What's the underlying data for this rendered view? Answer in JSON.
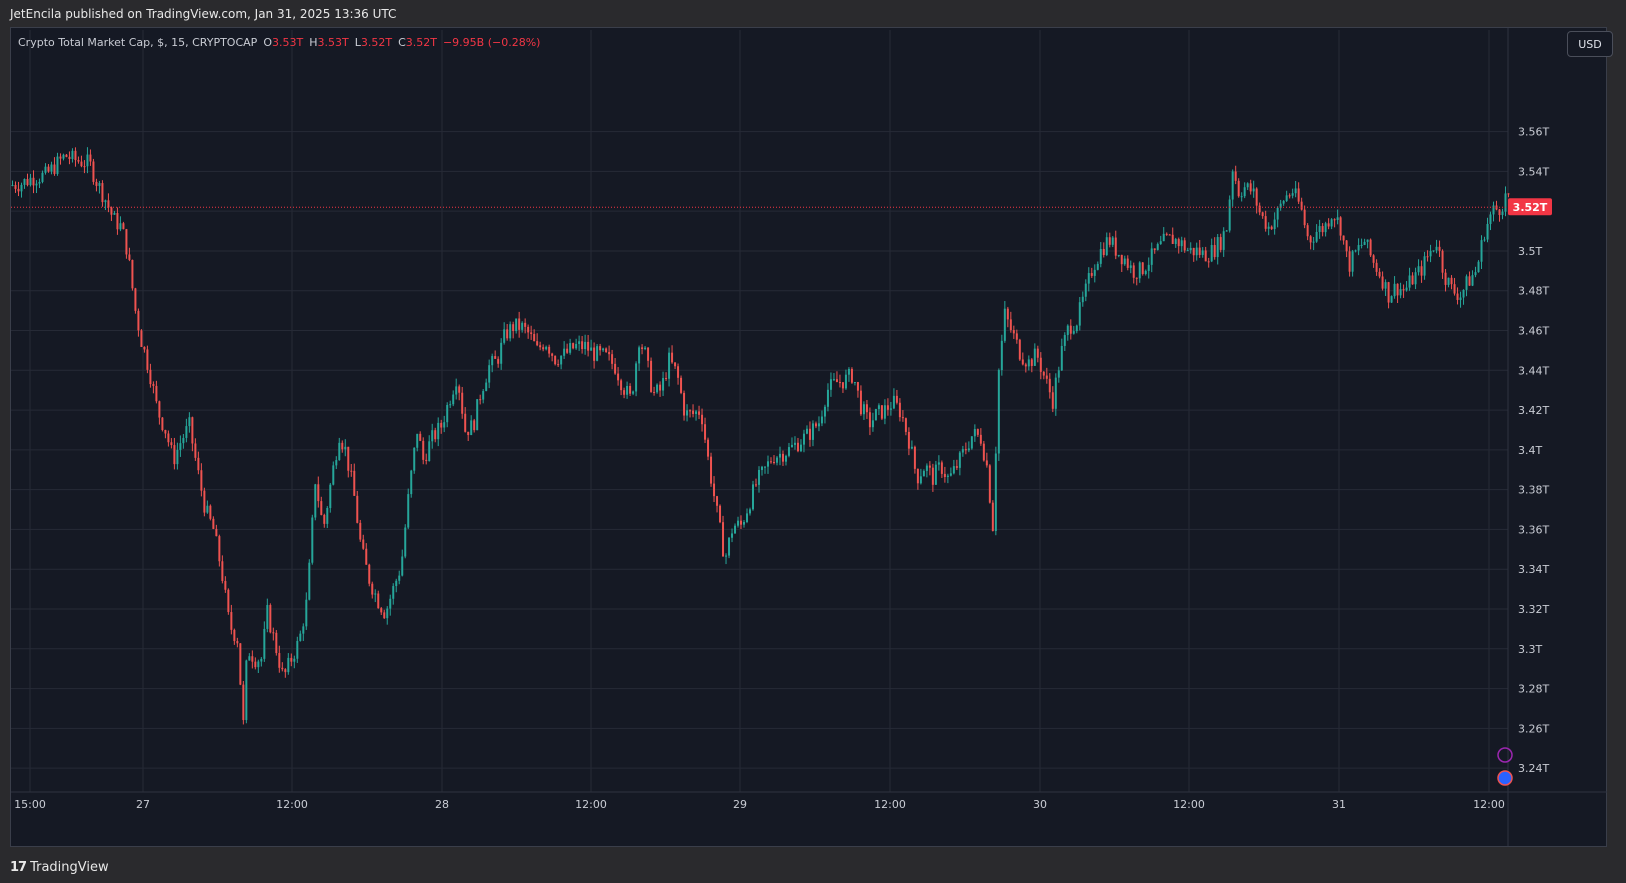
{
  "header": {
    "published_by": "JetEncila published on TradingView.com, Jan 31, 2025 13:36 UTC"
  },
  "legend": {
    "symbol": "Crypto Total Market Cap, $, 15, CRYPTOCAP",
    "open_label": "O",
    "open_value": "3.53T",
    "high_label": "H",
    "high_value": "3.53T",
    "low_label": "L",
    "low_value": "3.52T",
    "close_label": "C",
    "close_value": "3.52T",
    "change": "−9.95B (−0.28%)"
  },
  "currency_button": "USD",
  "current_price_label": "3.52T",
  "footer": {
    "logo": "17",
    "brand": "TradingView"
  },
  "colors": {
    "up": "#26a69a",
    "down": "#ef5350",
    "background": "#151924",
    "grid": "#262a36",
    "price_line": "#f23645"
  },
  "chart_data": {
    "type": "candlestick",
    "title": "",
    "xlabel": "",
    "ylabel": "",
    "ylim": [
      3.228,
      3.596
    ],
    "y_ticks": [
      "3.24T",
      "3.26T",
      "3.28T",
      "3.3T",
      "3.32T",
      "3.34T",
      "3.36T",
      "3.38T",
      "3.4T",
      "3.42T",
      "3.44T",
      "3.46T",
      "3.48T",
      "3.5T",
      "3.52T",
      "3.54T",
      "3.56T"
    ],
    "x_ticks": [
      "15:00",
      "27",
      "12:00",
      "28",
      "12:00",
      "29",
      "12:00",
      "30",
      "12:00",
      "31",
      "12:00"
    ],
    "current_price": 3.522,
    "path": [
      [
        0,
        3.533
      ],
      [
        12,
        3.534
      ],
      [
        24,
        3.537
      ],
      [
        36,
        3.538
      ],
      [
        48,
        3.544
      ],
      [
        56,
        3.548
      ],
      [
        64,
        3.546
      ],
      [
        72,
        3.545
      ],
      [
        80,
        3.544
      ],
      [
        88,
        3.534
      ],
      [
        96,
        3.526
      ],
      [
        104,
        3.516
      ],
      [
        112,
        3.512
      ],
      [
        118,
        3.5
      ],
      [
        126,
        3.47
      ],
      [
        132,
        3.455
      ],
      [
        140,
        3.44
      ],
      [
        148,
        3.42
      ],
      [
        156,
        3.41
      ],
      [
        164,
        3.395
      ],
      [
        172,
        3.405
      ],
      [
        180,
        3.412
      ],
      [
        188,
        3.39
      ],
      [
        196,
        3.37
      ],
      [
        204,
        3.36
      ],
      [
        212,
        3.34
      ],
      [
        220,
        3.312
      ],
      [
        228,
        3.305
      ],
      [
        234,
        3.262
      ],
      [
        238,
        3.3
      ],
      [
        246,
        3.295
      ],
      [
        252,
        3.295
      ],
      [
        258,
        3.318
      ],
      [
        266,
        3.302
      ],
      [
        274,
        3.285
      ],
      [
        282,
        3.295
      ],
      [
        290,
        3.304
      ],
      [
        298,
        3.325
      ],
      [
        306,
        3.385
      ],
      [
        314,
        3.36
      ],
      [
        322,
        3.385
      ],
      [
        330,
        3.408
      ],
      [
        336,
        3.4
      ],
      [
        344,
        3.38
      ],
      [
        352,
        3.35
      ],
      [
        360,
        3.335
      ],
      [
        368,
        3.325
      ],
      [
        376,
        3.318
      ],
      [
        384,
        3.33
      ],
      [
        392,
        3.342
      ],
      [
        400,
        3.38
      ],
      [
        408,
        3.41
      ],
      [
        414,
        3.395
      ],
      [
        422,
        3.405
      ],
      [
        432,
        3.412
      ],
      [
        440,
        3.425
      ],
      [
        448,
        3.438
      ],
      [
        456,
        3.41
      ],
      [
        464,
        3.412
      ],
      [
        472,
        3.43
      ],
      [
        480,
        3.442
      ],
      [
        488,
        3.445
      ],
      [
        496,
        3.458
      ],
      [
        504,
        3.462
      ],
      [
        512,
        3.462
      ],
      [
        520,
        3.458
      ],
      [
        528,
        3.45
      ],
      [
        536,
        3.455
      ],
      [
        546,
        3.446
      ],
      [
        556,
        3.448
      ],
      [
        566,
        3.452
      ],
      [
        576,
        3.452
      ],
      [
        586,
        3.448
      ],
      [
        596,
        3.447
      ],
      [
        606,
        3.442
      ],
      [
        614,
        3.432
      ],
      [
        622,
        3.425
      ],
      [
        630,
        3.456
      ],
      [
        636,
        3.448
      ],
      [
        644,
        3.428
      ],
      [
        652,
        3.43
      ],
      [
        660,
        3.445
      ],
      [
        668,
        3.438
      ],
      [
        676,
        3.418
      ],
      [
        684,
        3.418
      ],
      [
        692,
        3.42
      ],
      [
        700,
        3.392
      ],
      [
        708,
        3.368
      ],
      [
        716,
        3.345
      ],
      [
        724,
        3.362
      ],
      [
        732,
        3.362
      ],
      [
        740,
        3.373
      ],
      [
        748,
        3.384
      ],
      [
        756,
        3.39
      ],
      [
        764,
        3.397
      ],
      [
        772,
        3.398
      ],
      [
        780,
        3.4
      ],
      [
        790,
        3.404
      ],
      [
        800,
        3.408
      ],
      [
        810,
        3.414
      ],
      [
        818,
        3.43
      ],
      [
        828,
        3.434
      ],
      [
        836,
        3.435
      ],
      [
        844,
        3.438
      ],
      [
        852,
        3.422
      ],
      [
        860,
        3.413
      ],
      [
        868,
        3.418
      ],
      [
        876,
        3.42
      ],
      [
        884,
        3.424
      ],
      [
        892,
        3.419
      ],
      [
        900,
        3.405
      ],
      [
        908,
        3.386
      ],
      [
        916,
        3.392
      ],
      [
        924,
        3.386
      ],
      [
        932,
        3.392
      ],
      [
        940,
        3.385
      ],
      [
        948,
        3.392
      ],
      [
        956,
        3.4
      ],
      [
        964,
        3.408
      ],
      [
        972,
        3.406
      ],
      [
        978,
        3.392
      ],
      [
        984,
        3.362
      ],
      [
        990,
        3.44
      ],
      [
        996,
        3.468
      ],
      [
        1004,
        3.458
      ],
      [
        1012,
        3.448
      ],
      [
        1020,
        3.444
      ],
      [
        1028,
        3.448
      ],
      [
        1036,
        3.436
      ],
      [
        1044,
        3.425
      ],
      [
        1052,
        3.448
      ],
      [
        1060,
        3.462
      ],
      [
        1068,
        3.465
      ],
      [
        1076,
        3.478
      ],
      [
        1084,
        3.492
      ],
      [
        1092,
        3.5
      ],
      [
        1100,
        3.506
      ],
      [
        1108,
        3.5
      ],
      [
        1116,
        3.496
      ],
      [
        1124,
        3.49
      ],
      [
        1132,
        3.49
      ],
      [
        1140,
        3.495
      ],
      [
        1148,
        3.5
      ],
      [
        1156,
        3.505
      ],
      [
        1164,
        3.506
      ],
      [
        1172,
        3.504
      ],
      [
        1180,
        3.5
      ],
      [
        1188,
        3.5
      ],
      [
        1196,
        3.498
      ],
      [
        1204,
        3.5
      ],
      [
        1212,
        3.505
      ],
      [
        1218,
        3.512
      ],
      [
        1224,
        3.542
      ],
      [
        1230,
        3.53
      ],
      [
        1236,
        3.532
      ],
      [
        1244,
        3.53
      ],
      [
        1252,
        3.518
      ],
      [
        1260,
        3.512
      ],
      [
        1268,
        3.518
      ],
      [
        1276,
        3.527
      ],
      [
        1284,
        3.53
      ],
      [
        1292,
        3.522
      ],
      [
        1300,
        3.505
      ],
      [
        1308,
        3.51
      ],
      [
        1316,
        3.512
      ],
      [
        1324,
        3.52
      ],
      [
        1332,
        3.512
      ],
      [
        1340,
        3.492
      ],
      [
        1348,
        3.5
      ],
      [
        1356,
        3.505
      ],
      [
        1364,
        3.495
      ],
      [
        1372,
        3.488
      ],
      [
        1380,
        3.478
      ],
      [
        1388,
        3.482
      ],
      [
        1396,
        3.48
      ],
      [
        1404,
        3.486
      ],
      [
        1412,
        3.49
      ],
      [
        1420,
        3.498
      ],
      [
        1428,
        3.505
      ],
      [
        1436,
        3.488
      ],
      [
        1444,
        3.48
      ],
      [
        1452,
        3.478
      ],
      [
        1460,
        3.485
      ],
      [
        1468,
        3.49
      ],
      [
        1476,
        3.51
      ],
      [
        1484,
        3.52
      ],
      [
        1492,
        3.522
      ],
      [
        1498,
        3.528
      ]
    ]
  }
}
